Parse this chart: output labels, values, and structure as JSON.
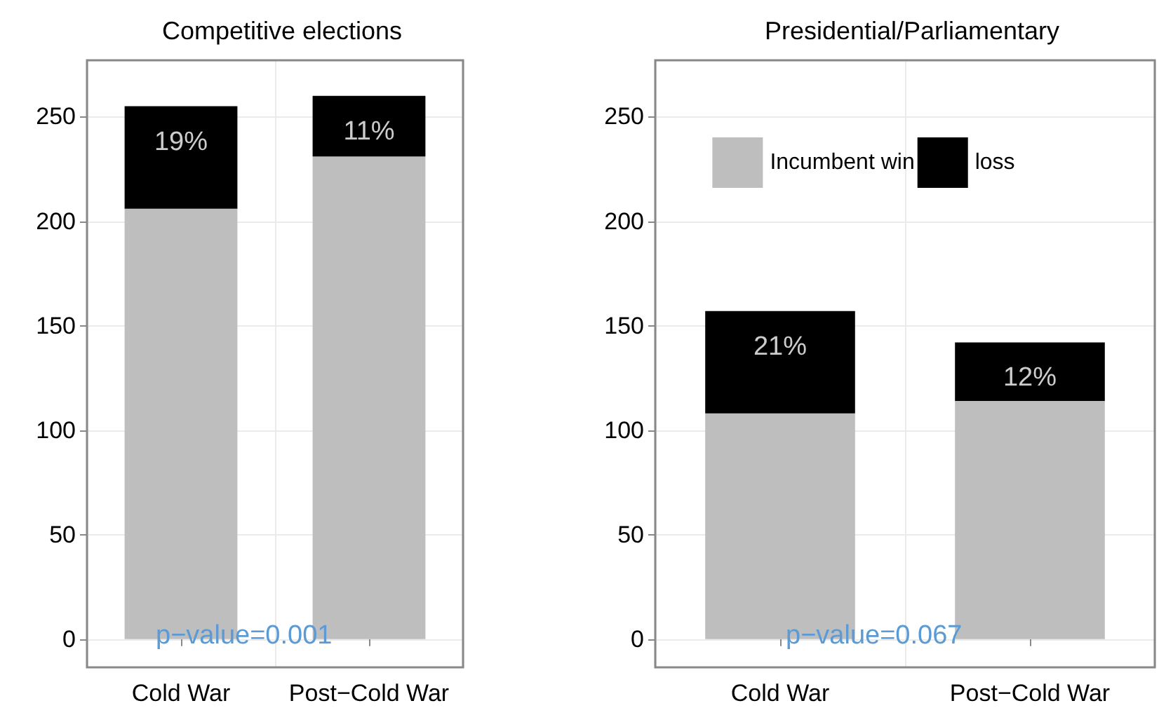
{
  "chart_data": [
    {
      "type": "bar",
      "title": "Competitive elections",
      "categories": [
        "Cold War",
        "Post−Cold War"
      ],
      "stacked": true,
      "series": [
        {
          "color": "#bebebe",
          "values": [
            206,
            231
          ]
        },
        {
          "color": "#000000",
          "values": [
            49,
            29
          ]
        }
      ],
      "ylim": [
        -13.5,
        277
      ],
      "yticks": [
        0,
        50,
        100,
        150,
        200,
        250
      ],
      "grid": true,
      "legend": false,
      "annotations": [
        "p−value=0.001",
        {
          "text": "19%",
          "x": "Cold War",
          "y": 255
        },
        {
          "text": "11%",
          "x": "Post−Cold War",
          "y": 260
        }
      ]
    },
    {
      "type": "bar",
      "title": "Presidential/Parliamentary",
      "categories": [
        "Cold War",
        "Post−Cold War"
      ],
      "stacked": true,
      "series": [
        {
          "name": "Incumbent win",
          "color": "#bebebe",
          "values": [
            108,
            114
          ]
        },
        {
          "name": "loss",
          "color": "#000000",
          "values": [
            49,
            28
          ]
        }
      ],
      "ylim": [
        -13.5,
        277
      ],
      "yticks": [
        0,
        50,
        100,
        150,
        200,
        250
      ],
      "grid": true,
      "legend": "top",
      "annotations": [
        "p−value=0.067",
        {
          "text": "21%",
          "x": "Cold War",
          "y": 157
        },
        {
          "text": "12%",
          "x": "Post−Cold War",
          "y": 142
        }
      ]
    }
  ]
}
